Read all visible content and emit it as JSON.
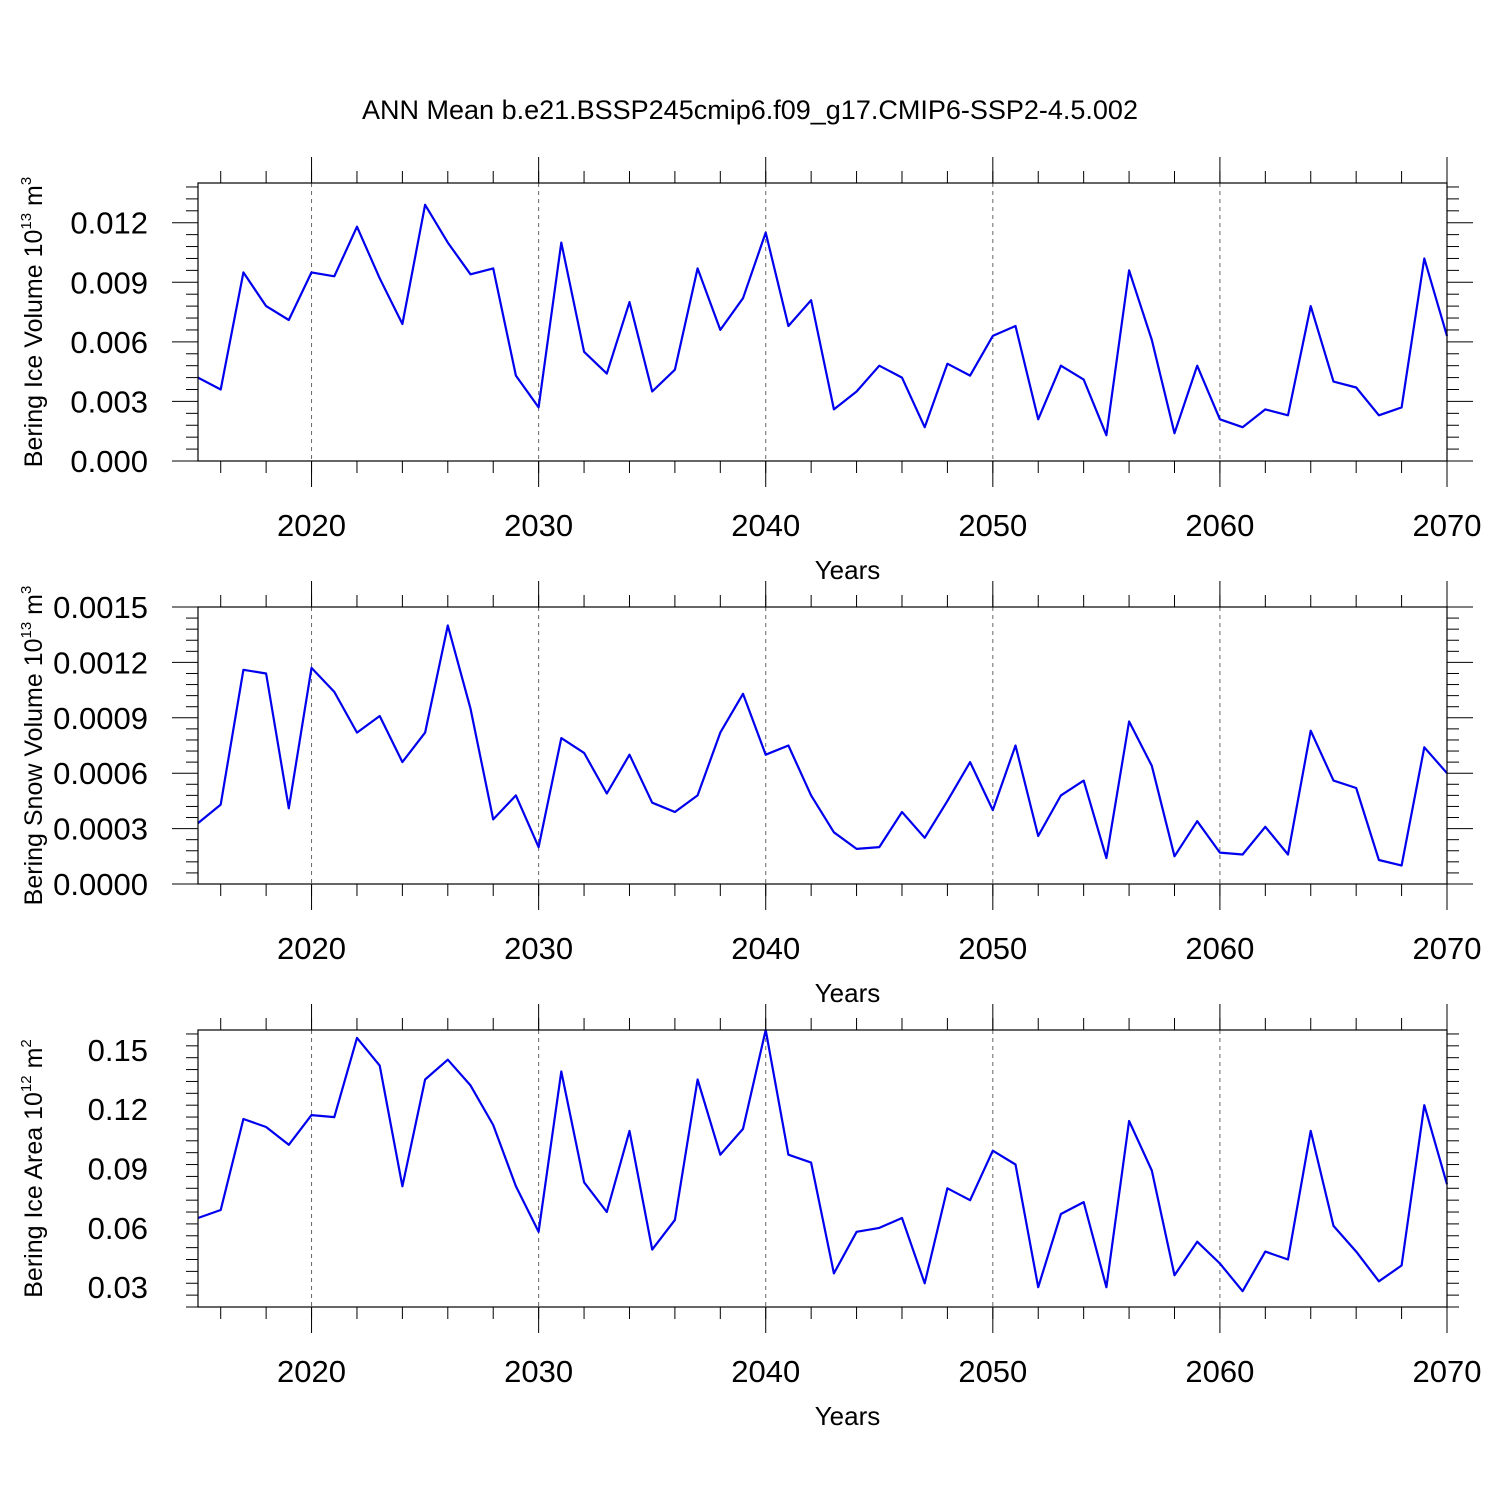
{
  "title": "ANN Mean b.e21.BSSP245cmip6.f09_g17.CMIP6-SSP2-4.5.002",
  "line_color": "#0000ee",
  "chart_data": [
    {
      "type": "line",
      "xlabel": "Years",
      "ylabel_prefix": "Bering Ice Volume 10",
      "ylabel_exp": "13",
      "ylabel_unit": " m",
      "ylabel_unit_exp": "3",
      "xlim": [
        2015,
        2070
      ],
      "ylim": [
        0,
        0.014
      ],
      "xticks": [
        2020,
        2030,
        2040,
        2050,
        2060,
        2070
      ],
      "xtick_labels": [
        "2020",
        "2030",
        "2040",
        "2050",
        "2060",
        "2070"
      ],
      "yticks": [
        0,
        0.003,
        0.006,
        0.009,
        0.012
      ],
      "ytick_labels": [
        "0.000",
        "0.003",
        "0.006",
        "0.009",
        "0.012"
      ],
      "x": [
        2015,
        2016,
        2017,
        2018,
        2019,
        2020,
        2021,
        2022,
        2023,
        2024,
        2025,
        2026,
        2027,
        2028,
        2029,
        2030,
        2031,
        2032,
        2033,
        2034,
        2035,
        2036,
        2037,
        2038,
        2039,
        2040,
        2041,
        2042,
        2043,
        2044,
        2045,
        2046,
        2047,
        2048,
        2049,
        2050,
        2051,
        2052,
        2053,
        2054,
        2055,
        2056,
        2057,
        2058,
        2059,
        2060,
        2061,
        2062,
        2063,
        2064,
        2065,
        2066,
        2067,
        2068,
        2069,
        2070
      ],
      "y": [
        0.0042,
        0.0036,
        0.0095,
        0.0078,
        0.0071,
        0.0095,
        0.0093,
        0.0118,
        0.0092,
        0.0069,
        0.0129,
        0.011,
        0.0094,
        0.0097,
        0.0043,
        0.0027,
        0.011,
        0.0055,
        0.0044,
        0.008,
        0.0035,
        0.0046,
        0.0097,
        0.0066,
        0.0082,
        0.0115,
        0.0068,
        0.0081,
        0.0026,
        0.0035,
        0.0048,
        0.0042,
        0.0017,
        0.0049,
        0.0043,
        0.0063,
        0.0068,
        0.0021,
        0.0048,
        0.0041,
        0.0013,
        0.0096,
        0.0061,
        0.0014,
        0.0048,
        0.0021,
        0.0017,
        0.0026,
        0.0023,
        0.0078,
        0.004,
        0.0037,
        0.0023,
        0.0027,
        0.0102,
        0.0063
      ]
    },
    {
      "type": "line",
      "xlabel": "Years",
      "ylabel_prefix": "Bering Snow Volume 10",
      "ylabel_exp": "13",
      "ylabel_unit": " m",
      "ylabel_unit_exp": "3",
      "xlim": [
        2015,
        2070
      ],
      "ylim": [
        0,
        0.0015
      ],
      "xticks": [
        2020,
        2030,
        2040,
        2050,
        2060,
        2070
      ],
      "xtick_labels": [
        "2020",
        "2030",
        "2040",
        "2050",
        "2060",
        "2070"
      ],
      "yticks": [
        0,
        0.0003,
        0.0006,
        0.0009,
        0.0012,
        0.0015
      ],
      "ytick_labels": [
        "0.0000",
        "0.0003",
        "0.0006",
        "0.0009",
        "0.0012",
        "0.0015"
      ],
      "x": [
        2015,
        2016,
        2017,
        2018,
        2019,
        2020,
        2021,
        2022,
        2023,
        2024,
        2025,
        2026,
        2027,
        2028,
        2029,
        2030,
        2031,
        2032,
        2033,
        2034,
        2035,
        2036,
        2037,
        2038,
        2039,
        2040,
        2041,
        2042,
        2043,
        2044,
        2045,
        2046,
        2047,
        2048,
        2049,
        2050,
        2051,
        2052,
        2053,
        2054,
        2055,
        2056,
        2057,
        2058,
        2059,
        2060,
        2061,
        2062,
        2063,
        2064,
        2065,
        2066,
        2067,
        2068,
        2069,
        2070
      ],
      "y": [
        0.00033,
        0.00043,
        0.00116,
        0.00114,
        0.00041,
        0.00117,
        0.00104,
        0.00082,
        0.00091,
        0.00066,
        0.00082,
        0.0014,
        0.00095,
        0.00035,
        0.00048,
        0.0002,
        0.00079,
        0.00071,
        0.00049,
        0.0007,
        0.00044,
        0.00039,
        0.00048,
        0.00082,
        0.00103,
        0.0007,
        0.00075,
        0.00048,
        0.00028,
        0.00019,
        0.0002,
        0.00039,
        0.00025,
        0.00045,
        0.00066,
        0.0004,
        0.00075,
        0.00026,
        0.00048,
        0.00056,
        0.00014,
        0.00088,
        0.00064,
        0.00015,
        0.00034,
        0.00017,
        0.00016,
        0.00031,
        0.00016,
        0.00083,
        0.00056,
        0.00052,
        0.00013,
        0.0001,
        0.00074,
        0.0006
      ]
    },
    {
      "type": "line",
      "xlabel": "Years",
      "ylabel_prefix": "Bering Ice Area 10",
      "ylabel_exp": "12",
      "ylabel_unit": " m",
      "ylabel_unit_exp": "2",
      "xlim": [
        2015,
        2070
      ],
      "ylim": [
        0.02,
        0.16
      ],
      "xticks": [
        2020,
        2030,
        2040,
        2050,
        2060,
        2070
      ],
      "xtick_labels": [
        "2020",
        "2030",
        "2040",
        "2050",
        "2060",
        "2070"
      ],
      "yticks": [
        0.03,
        0.06,
        0.09,
        0.12,
        0.15
      ],
      "ytick_labels": [
        "0.03",
        "0.06",
        "0.09",
        "0.12",
        "0.15"
      ],
      "x": [
        2015,
        2016,
        2017,
        2018,
        2019,
        2020,
        2021,
        2022,
        2023,
        2024,
        2025,
        2026,
        2027,
        2028,
        2029,
        2030,
        2031,
        2032,
        2033,
        2034,
        2035,
        2036,
        2037,
        2038,
        2039,
        2040,
        2041,
        2042,
        2043,
        2044,
        2045,
        2046,
        2047,
        2048,
        2049,
        2050,
        2051,
        2052,
        2053,
        2054,
        2055,
        2056,
        2057,
        2058,
        2059,
        2060,
        2061,
        2062,
        2063,
        2064,
        2065,
        2066,
        2067,
        2068,
        2069,
        2070
      ],
      "y": [
        0.065,
        0.069,
        0.115,
        0.111,
        0.102,
        0.117,
        0.116,
        0.156,
        0.142,
        0.081,
        0.135,
        0.145,
        0.132,
        0.112,
        0.081,
        0.058,
        0.139,
        0.083,
        0.068,
        0.109,
        0.049,
        0.064,
        0.135,
        0.097,
        0.11,
        0.16,
        0.097,
        0.093,
        0.037,
        0.058,
        0.06,
        0.065,
        0.032,
        0.08,
        0.074,
        0.099,
        0.092,
        0.03,
        0.067,
        0.073,
        0.03,
        0.114,
        0.089,
        0.036,
        0.053,
        0.042,
        0.028,
        0.048,
        0.044,
        0.109,
        0.061,
        0.048,
        0.033,
        0.041,
        0.122,
        0.082
      ]
    }
  ]
}
